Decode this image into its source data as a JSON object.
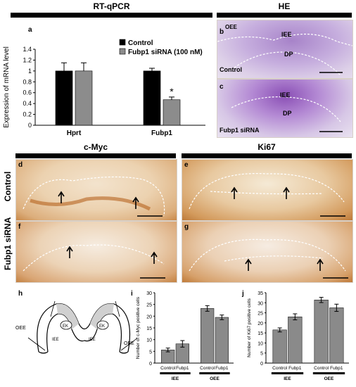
{
  "headers": {
    "rtqpcr": "RT-qPCR",
    "he": "HE",
    "cmyc": "c-Myc",
    "ki67": "Ki67"
  },
  "side_labels": {
    "control": "Control",
    "siRNA": "Fubp1 siRNA"
  },
  "panel_letters": {
    "a": "a",
    "b": "b",
    "c": "c",
    "d": "d",
    "e": "e",
    "f": "f",
    "g": "g",
    "h": "h",
    "i": "i",
    "j": "j"
  },
  "he_labels": {
    "b_oee": "OEE",
    "b_iee": "IEE",
    "b_dp": "DP",
    "b_caption": "Control",
    "c_iee": "IEE",
    "c_dp": "DP",
    "c_caption": "Fubp1 siRNA"
  },
  "diagram": {
    "oee_left": "OEE",
    "oee_right": "OEE",
    "ek_left": "EK",
    "ek_right": "EK",
    "iee_left": "IEE",
    "iee_right": "IEE"
  },
  "colors": {
    "control_bar": "#000000",
    "sirna_bar": "#8c8c8c",
    "small_bar": "#8a8a8a",
    "he_stain": "#9a6fc0",
    "ihc_stain": "#c8742a"
  },
  "chart_data": [
    {
      "id": "a",
      "type": "bar",
      "ylabel": "Expression of mRNA level",
      "categories": [
        "Hprt",
        "Fubp1"
      ],
      "ylim": [
        0,
        1.4
      ],
      "yticks": [
        "0",
        "0.2",
        "0.4",
        "0.6",
        "0.8",
        "1",
        "1.2",
        "1.4"
      ],
      "legend_position": "top-right",
      "series": [
        {
          "name": "Control",
          "values": [
            1.0,
            1.0
          ],
          "errors": [
            0.15,
            0.05
          ]
        },
        {
          "name": "Fubp1 siRNA (100 nM)",
          "values": [
            1.0,
            0.47
          ],
          "errors": [
            0.15,
            0.05
          ]
        }
      ],
      "annotations": [
        "*"
      ]
    },
    {
      "id": "i",
      "type": "bar",
      "ylabel": "Number of c-Myc positive cells",
      "categories": [
        "Control",
        "Fubp1",
        "Control",
        "Fubp1"
      ],
      "groups": [
        "IEE",
        "OEE"
      ],
      "values": [
        5.6,
        8.2,
        23.3,
        19.5
      ],
      "errors": [
        0.8,
        1.4,
        1.2,
        1.0
      ],
      "ylim": [
        0,
        30
      ],
      "yticks": [
        "0",
        "5",
        "10",
        "15",
        "20",
        "25",
        "30"
      ]
    },
    {
      "id": "j",
      "type": "bar",
      "ylabel": "Number of Ki67 positive cells",
      "categories": [
        "Control",
        "Fubp1",
        "Control",
        "Fubp1"
      ],
      "groups": [
        "IEE",
        "OEE"
      ],
      "values": [
        16.5,
        23.0,
        31.4,
        27.5
      ],
      "errors": [
        1.0,
        1.5,
        1.3,
        1.8
      ],
      "ylim": [
        0,
        35
      ],
      "yticks": [
        "0",
        "5",
        "10",
        "15",
        "20",
        "25",
        "30",
        "35"
      ]
    }
  ]
}
